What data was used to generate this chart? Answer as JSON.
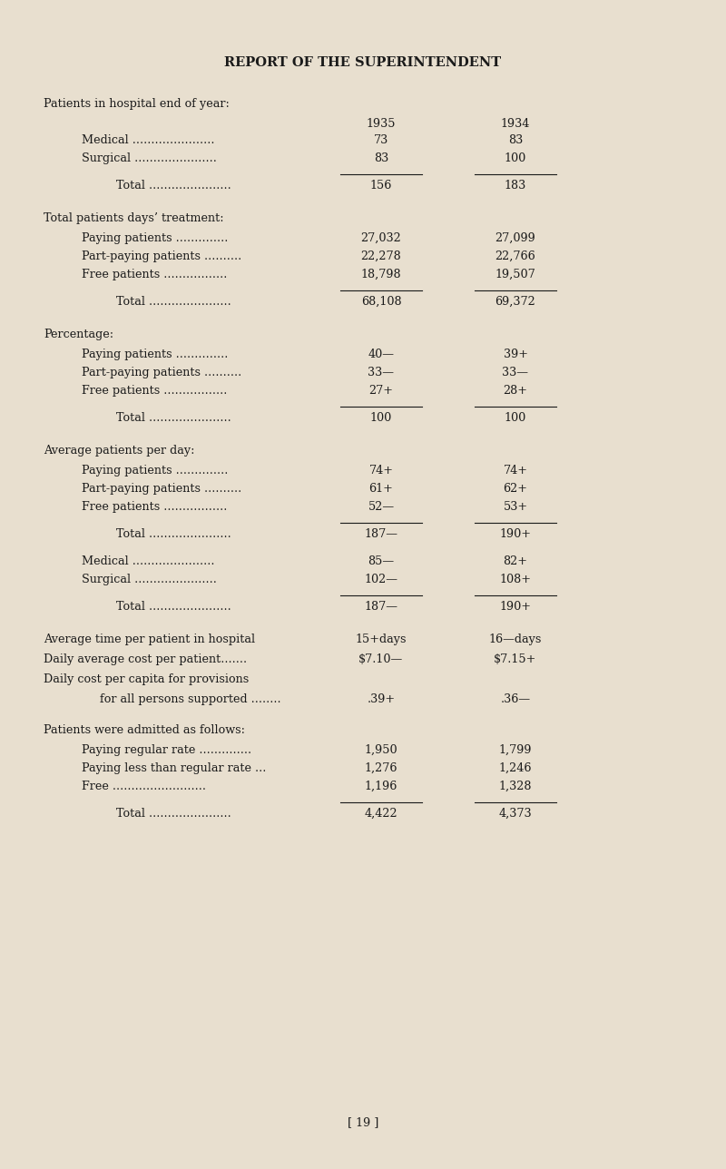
{
  "bg_color": "#e8dfcf",
  "text_color": "#1a1a1a",
  "title": "REPORT OF THE SUPERINTENDENT",
  "col1935_label": "1935",
  "col1934_label": "1934",
  "page_number": "[ 19 ]",
  "rows": [
    {
      "type": "section",
      "label": "Patients in hospital end of year:",
      "v1": "",
      "v2": ""
    },
    {
      "type": "year_header",
      "label": "",
      "v1": "1935",
      "v2": "1934"
    },
    {
      "type": "item1",
      "label": "Medical ......................",
      "v1": "73",
      "v2": "83"
    },
    {
      "type": "item1",
      "label": "Surgical ......................",
      "v1": "83",
      "v2": "100"
    },
    {
      "type": "line",
      "label": "",
      "v1": "",
      "v2": ""
    },
    {
      "type": "total",
      "label": "Total ......................",
      "v1": "156",
      "v2": "183"
    },
    {
      "type": "gap",
      "label": "",
      "v1": "",
      "v2": ""
    },
    {
      "type": "section",
      "label": "Total patients days’ treatment:",
      "v1": "",
      "v2": ""
    },
    {
      "type": "item1",
      "label": "Paying patients ..............",
      "v1": "27,032",
      "v2": "27,099"
    },
    {
      "type": "item1",
      "label": "Part-paying patients ..........",
      "v1": "22,278",
      "v2": "22,766"
    },
    {
      "type": "item1",
      "label": "Free patients .................",
      "v1": "18,798",
      "v2": "19,507"
    },
    {
      "type": "line",
      "label": "",
      "v1": "",
      "v2": ""
    },
    {
      "type": "total",
      "label": "Total ......................",
      "v1": "68,108",
      "v2": "69,372"
    },
    {
      "type": "gap",
      "label": "",
      "v1": "",
      "v2": ""
    },
    {
      "type": "section",
      "label": "Percentage:",
      "v1": "",
      "v2": ""
    },
    {
      "type": "item1",
      "label": "Paying patients ..............",
      "v1": "40—",
      "v2": "39+"
    },
    {
      "type": "item1",
      "label": "Part-paying patients ..........",
      "v1": "33—",
      "v2": "33—"
    },
    {
      "type": "item1",
      "label": "Free patients .................",
      "v1": "27+",
      "v2": "28+"
    },
    {
      "type": "line",
      "label": "",
      "v1": "",
      "v2": ""
    },
    {
      "type": "total",
      "label": "Total ......................",
      "v1": "100",
      "v2": "100"
    },
    {
      "type": "gap",
      "label": "",
      "v1": "",
      "v2": ""
    },
    {
      "type": "section",
      "label": "Average patients per day:",
      "v1": "",
      "v2": ""
    },
    {
      "type": "item1",
      "label": "Paying patients ..............",
      "v1": "74+",
      "v2": "74+"
    },
    {
      "type": "item1",
      "label": "Part-paying patients ..........",
      "v1": "61+",
      "v2": "62+"
    },
    {
      "type": "item1",
      "label": "Free patients .................",
      "v1": "52—",
      "v2": "53+"
    },
    {
      "type": "line",
      "label": "",
      "v1": "",
      "v2": ""
    },
    {
      "type": "total",
      "label": "Total ......................",
      "v1": "187—",
      "v2": "190+"
    },
    {
      "type": "smallgap",
      "label": "",
      "v1": "",
      "v2": ""
    },
    {
      "type": "item1",
      "label": "Medical ......................",
      "v1": "85—",
      "v2": "82+"
    },
    {
      "type": "item1",
      "label": "Surgical ......................",
      "v1": "102—",
      "v2": "108+"
    },
    {
      "type": "line",
      "label": "",
      "v1": "",
      "v2": ""
    },
    {
      "type": "total",
      "label": "Total ......................",
      "v1": "187—",
      "v2": "190+"
    },
    {
      "type": "gap",
      "label": "",
      "v1": "",
      "v2": ""
    },
    {
      "type": "section",
      "label": "Average time per patient in hospital",
      "v1": "15+days",
      "v2": "16—days"
    },
    {
      "type": "section",
      "label": "Daily average cost per patient.......",
      "v1": "$7.10—",
      "v2": "$7.15+"
    },
    {
      "type": "section",
      "label": "Daily cost per capita for provisions",
      "v1": "",
      "v2": ""
    },
    {
      "type": "item2",
      "label": "for all persons supported ........",
      "v1": ".39+",
      "v2": ".36—"
    },
    {
      "type": "gap",
      "label": "",
      "v1": "",
      "v2": ""
    },
    {
      "type": "section",
      "label": "Patients were admitted as follows:",
      "v1": "",
      "v2": ""
    },
    {
      "type": "item1",
      "label": "Paying regular rate ..............",
      "v1": "1,950",
      "v2": "1,799"
    },
    {
      "type": "item1",
      "label": "Paying less than regular rate ...",
      "v1": "1,276",
      "v2": "1,246"
    },
    {
      "type": "item1",
      "label": "Free .........................",
      "v1": "1,196",
      "v2": "1,328"
    },
    {
      "type": "line",
      "label": "",
      "v1": "",
      "v2": ""
    },
    {
      "type": "total",
      "label": "Total ......................",
      "v1": "4,422",
      "v2": "4,373"
    }
  ]
}
